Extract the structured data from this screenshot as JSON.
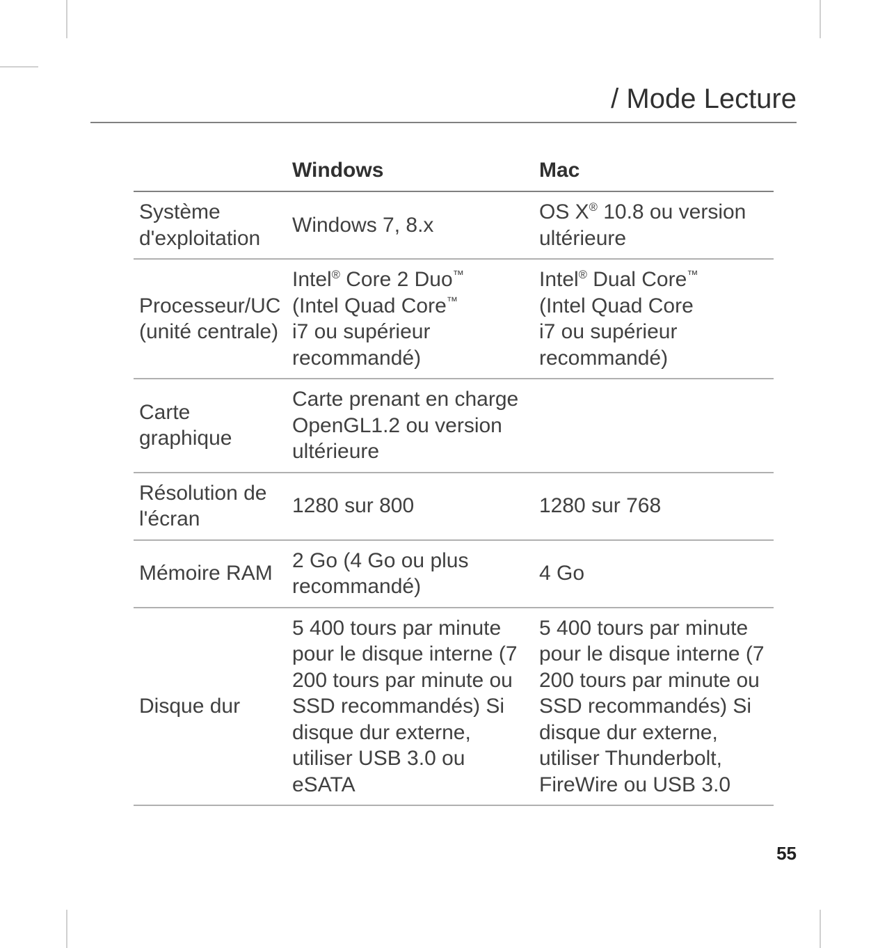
{
  "page": {
    "title": "/ Mode Lecture",
    "number": "55",
    "colors": {
      "text": "#404040",
      "heading": "#303030",
      "rule_dark": "#808080",
      "rule_light": "#b0b0b0",
      "background": "#ffffff"
    },
    "typography": {
      "title_fontsize": 40,
      "body_fontsize": 30,
      "pagenum_fontsize": 26
    }
  },
  "table": {
    "columns": [
      "",
      "Windows",
      "Mac"
    ],
    "rows": [
      {
        "label": "Système d'exploitation",
        "windows": "Windows 7, 8.x",
        "mac_html": "OS X<sup>®</sup> 10.8 ou version ultérieure"
      },
      {
        "label": "Processeur/UC (unité centrale)",
        "windows_html": "Intel<sup>®</sup> Core 2 Duo<sup>™</sup><br>(Intel Quad Core<sup>™</sup><br>i7 ou supérieur recommandé)",
        "mac_html": "Intel<sup>®</sup> Dual Core<sup>™</sup><br>(Intel Quad Core<br>i7 ou supérieur recommandé)"
      },
      {
        "label": "Carte graphique",
        "windows": "Carte prenant en charge OpenGL1.2 ou version ultérieure",
        "mac": ""
      },
      {
        "label": "Résolution de l'écran",
        "windows": "1280 sur 800",
        "mac": "1280 sur 768"
      },
      {
        "label": "Mémoire RAM",
        "windows": "2 Go (4 Go ou plus recommandé)",
        "mac": "4 Go"
      },
      {
        "label": "Disque dur",
        "windows": "5 400 tours par minute pour le disque interne (7 200 tours par minute ou SSD recommandés) Si disque dur externe, utiliser USB 3.0 ou eSATA",
        "mac": "5 400 tours par minute pour le disque interne (7 200 tours par minute ou SSD recommandés) Si disque dur externe, utiliser Thunderbolt, FireWire ou USB 3.0"
      }
    ]
  }
}
